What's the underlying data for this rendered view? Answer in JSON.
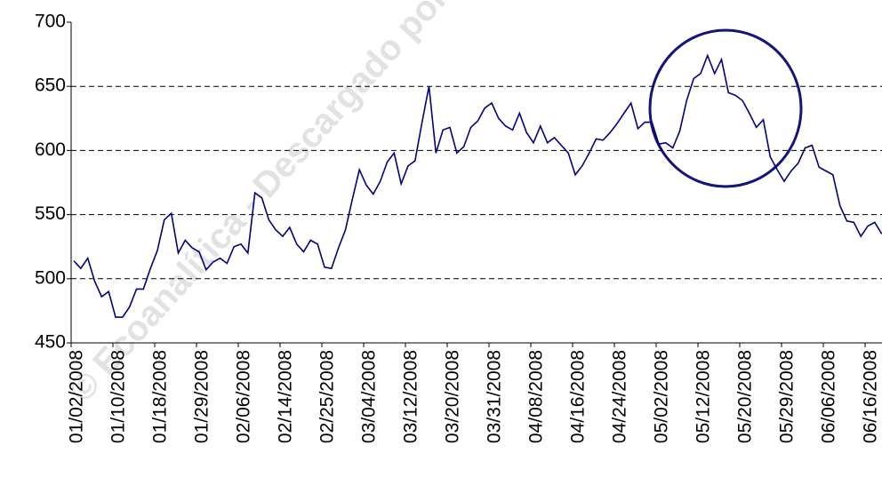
{
  "chart_data": {
    "type": "line",
    "watermark": "© Ecoanalítica - Descargado por us",
    "categories": [
      "01/02/2008",
      null,
      null,
      null,
      null,
      null,
      "01/10/2008",
      null,
      null,
      null,
      null,
      null,
      "01/18/2008",
      null,
      null,
      null,
      null,
      null,
      "01/29/2008",
      null,
      null,
      null,
      null,
      null,
      "02/06/2008",
      null,
      null,
      null,
      null,
      null,
      "02/14/2008",
      null,
      null,
      null,
      null,
      null,
      "02/25/2008",
      null,
      null,
      null,
      null,
      null,
      "03/04/2008",
      null,
      null,
      null,
      null,
      null,
      "03/12/2008",
      null,
      null,
      null,
      null,
      null,
      "03/20/2008",
      null,
      null,
      null,
      null,
      null,
      "03/31/2008",
      null,
      null,
      null,
      null,
      null,
      "04/08/2008",
      null,
      null,
      null,
      null,
      null,
      "04/16/2008",
      null,
      null,
      null,
      null,
      null,
      "04/24/2008",
      null,
      null,
      null,
      null,
      null,
      "05/02/2008",
      null,
      null,
      null,
      null,
      null,
      "05/12/2008",
      null,
      null,
      null,
      null,
      null,
      "05/20/2008",
      null,
      null,
      null,
      null,
      null,
      "05/29/2008",
      null,
      null,
      null,
      null,
      null,
      "06/06/2008",
      null,
      null,
      null,
      null,
      null,
      "06/16/2008",
      null,
      null
    ],
    "series": [
      {
        "color": "#000080",
        "values": [
          514,
          508,
          516,
          498,
          486,
          490,
          470,
          470,
          478,
          492,
          492,
          508,
          522,
          546,
          551,
          520,
          530,
          524,
          521,
          507,
          513,
          516,
          512,
          525,
          527,
          520,
          567,
          563,
          546,
          538,
          533,
          540,
          527,
          521,
          530,
          527,
          509,
          508,
          524,
          538,
          562,
          585,
          573,
          566,
          576,
          591,
          598,
          574,
          588,
          592,
          622,
          650,
          598,
          616,
          618,
          598,
          603,
          618,
          623,
          633,
          637,
          625,
          619,
          616,
          629,
          614,
          606,
          619,
          606,
          610,
          604,
          598,
          581,
          588,
          598,
          609,
          608,
          614,
          621,
          629,
          637,
          617,
          622,
          622,
          605,
          606,
          602,
          615,
          639,
          656,
          660,
          674,
          660,
          671,
          645,
          643,
          639,
          629,
          618,
          624,
          595,
          585,
          576,
          584,
          590,
          602,
          604,
          587,
          584,
          581,
          557,
          545,
          544,
          533,
          541,
          544,
          535
        ]
      }
    ],
    "ylim": [
      450,
      700
    ],
    "yticks": [
      450,
      500,
      550,
      600,
      650,
      700
    ],
    "grid": true
  }
}
